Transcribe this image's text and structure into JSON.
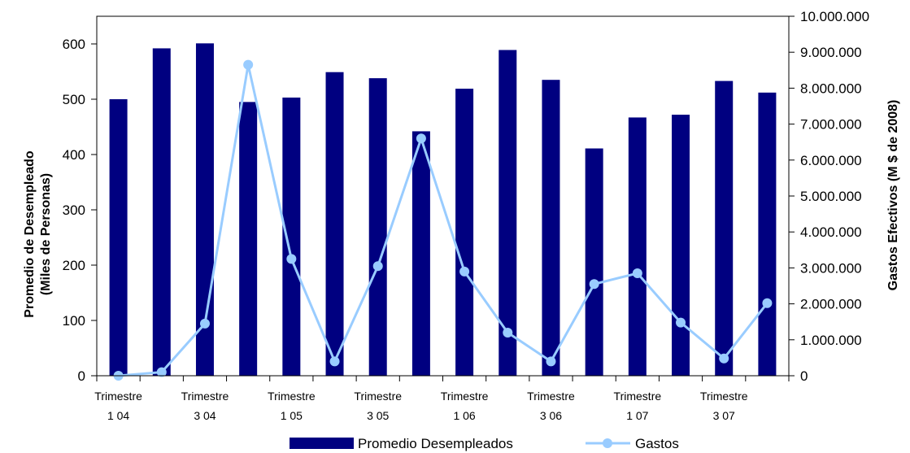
{
  "chart_data": {
    "type": "bar+line",
    "title": "",
    "categories": [
      "Trimestre 1 04",
      "",
      "Trimestre 3 04",
      "",
      "Trimestre 1 05",
      "",
      "Trimestre 3 05",
      "",
      "Trimestre 1 06",
      "",
      "Trimestre 3 06",
      "",
      "Trimestre 1 07",
      "",
      "Trimestre 3 07",
      ""
    ],
    "x_tick_labels": [
      [
        "Trimestre",
        "1 04"
      ],
      [
        "Trimestre",
        "3 04"
      ],
      [
        "Trimestre",
        "1 05"
      ],
      [
        "Trimestre",
        "3 05"
      ],
      [
        "Trimestre",
        "1 06"
      ],
      [
        "Trimestre",
        "3 06"
      ],
      [
        "Trimestre",
        "1 07"
      ],
      [
        "Trimestre",
        "3 07"
      ]
    ],
    "series": [
      {
        "name": "Promedio Desempleados",
        "type": "bar",
        "axis": "left",
        "color": "#000080",
        "values": [
          500,
          592,
          601,
          495,
          503,
          549,
          538,
          442,
          519,
          589,
          535,
          411,
          467,
          472,
          533,
          512
        ]
      },
      {
        "name": "Gastos",
        "type": "line",
        "axis": "right",
        "color": "#99ccff",
        "values": [
          0,
          100000,
          1450000,
          8650000,
          3250000,
          400000,
          3050000,
          6600000,
          2900000,
          1200000,
          400000,
          2550000,
          2850000,
          1480000,
          480000,
          2020000
        ]
      }
    ],
    "y_left": {
      "label": [
        "Promedio de Desempleado",
        "(Miles de Personas)"
      ],
      "ylim": [
        0,
        650
      ],
      "ticks": [
        "0",
        "100",
        "200",
        "300",
        "400",
        "500",
        "600"
      ]
    },
    "y_right": {
      "label": "Gastos Efectivos (M $ de 2008)",
      "ylim": [
        0,
        10000000
      ],
      "ticks": [
        "0",
        "1.000.000",
        "2.000.000",
        "3.000.000",
        "4.000.000",
        "5.000.000",
        "6.000.000",
        "7.000.000",
        "8.000.000",
        "9.000.000",
        "10.000.000"
      ]
    },
    "grid": false,
    "legend": {
      "position": "bottom",
      "entries": [
        "Promedio Desempleados",
        "Gastos"
      ]
    }
  }
}
